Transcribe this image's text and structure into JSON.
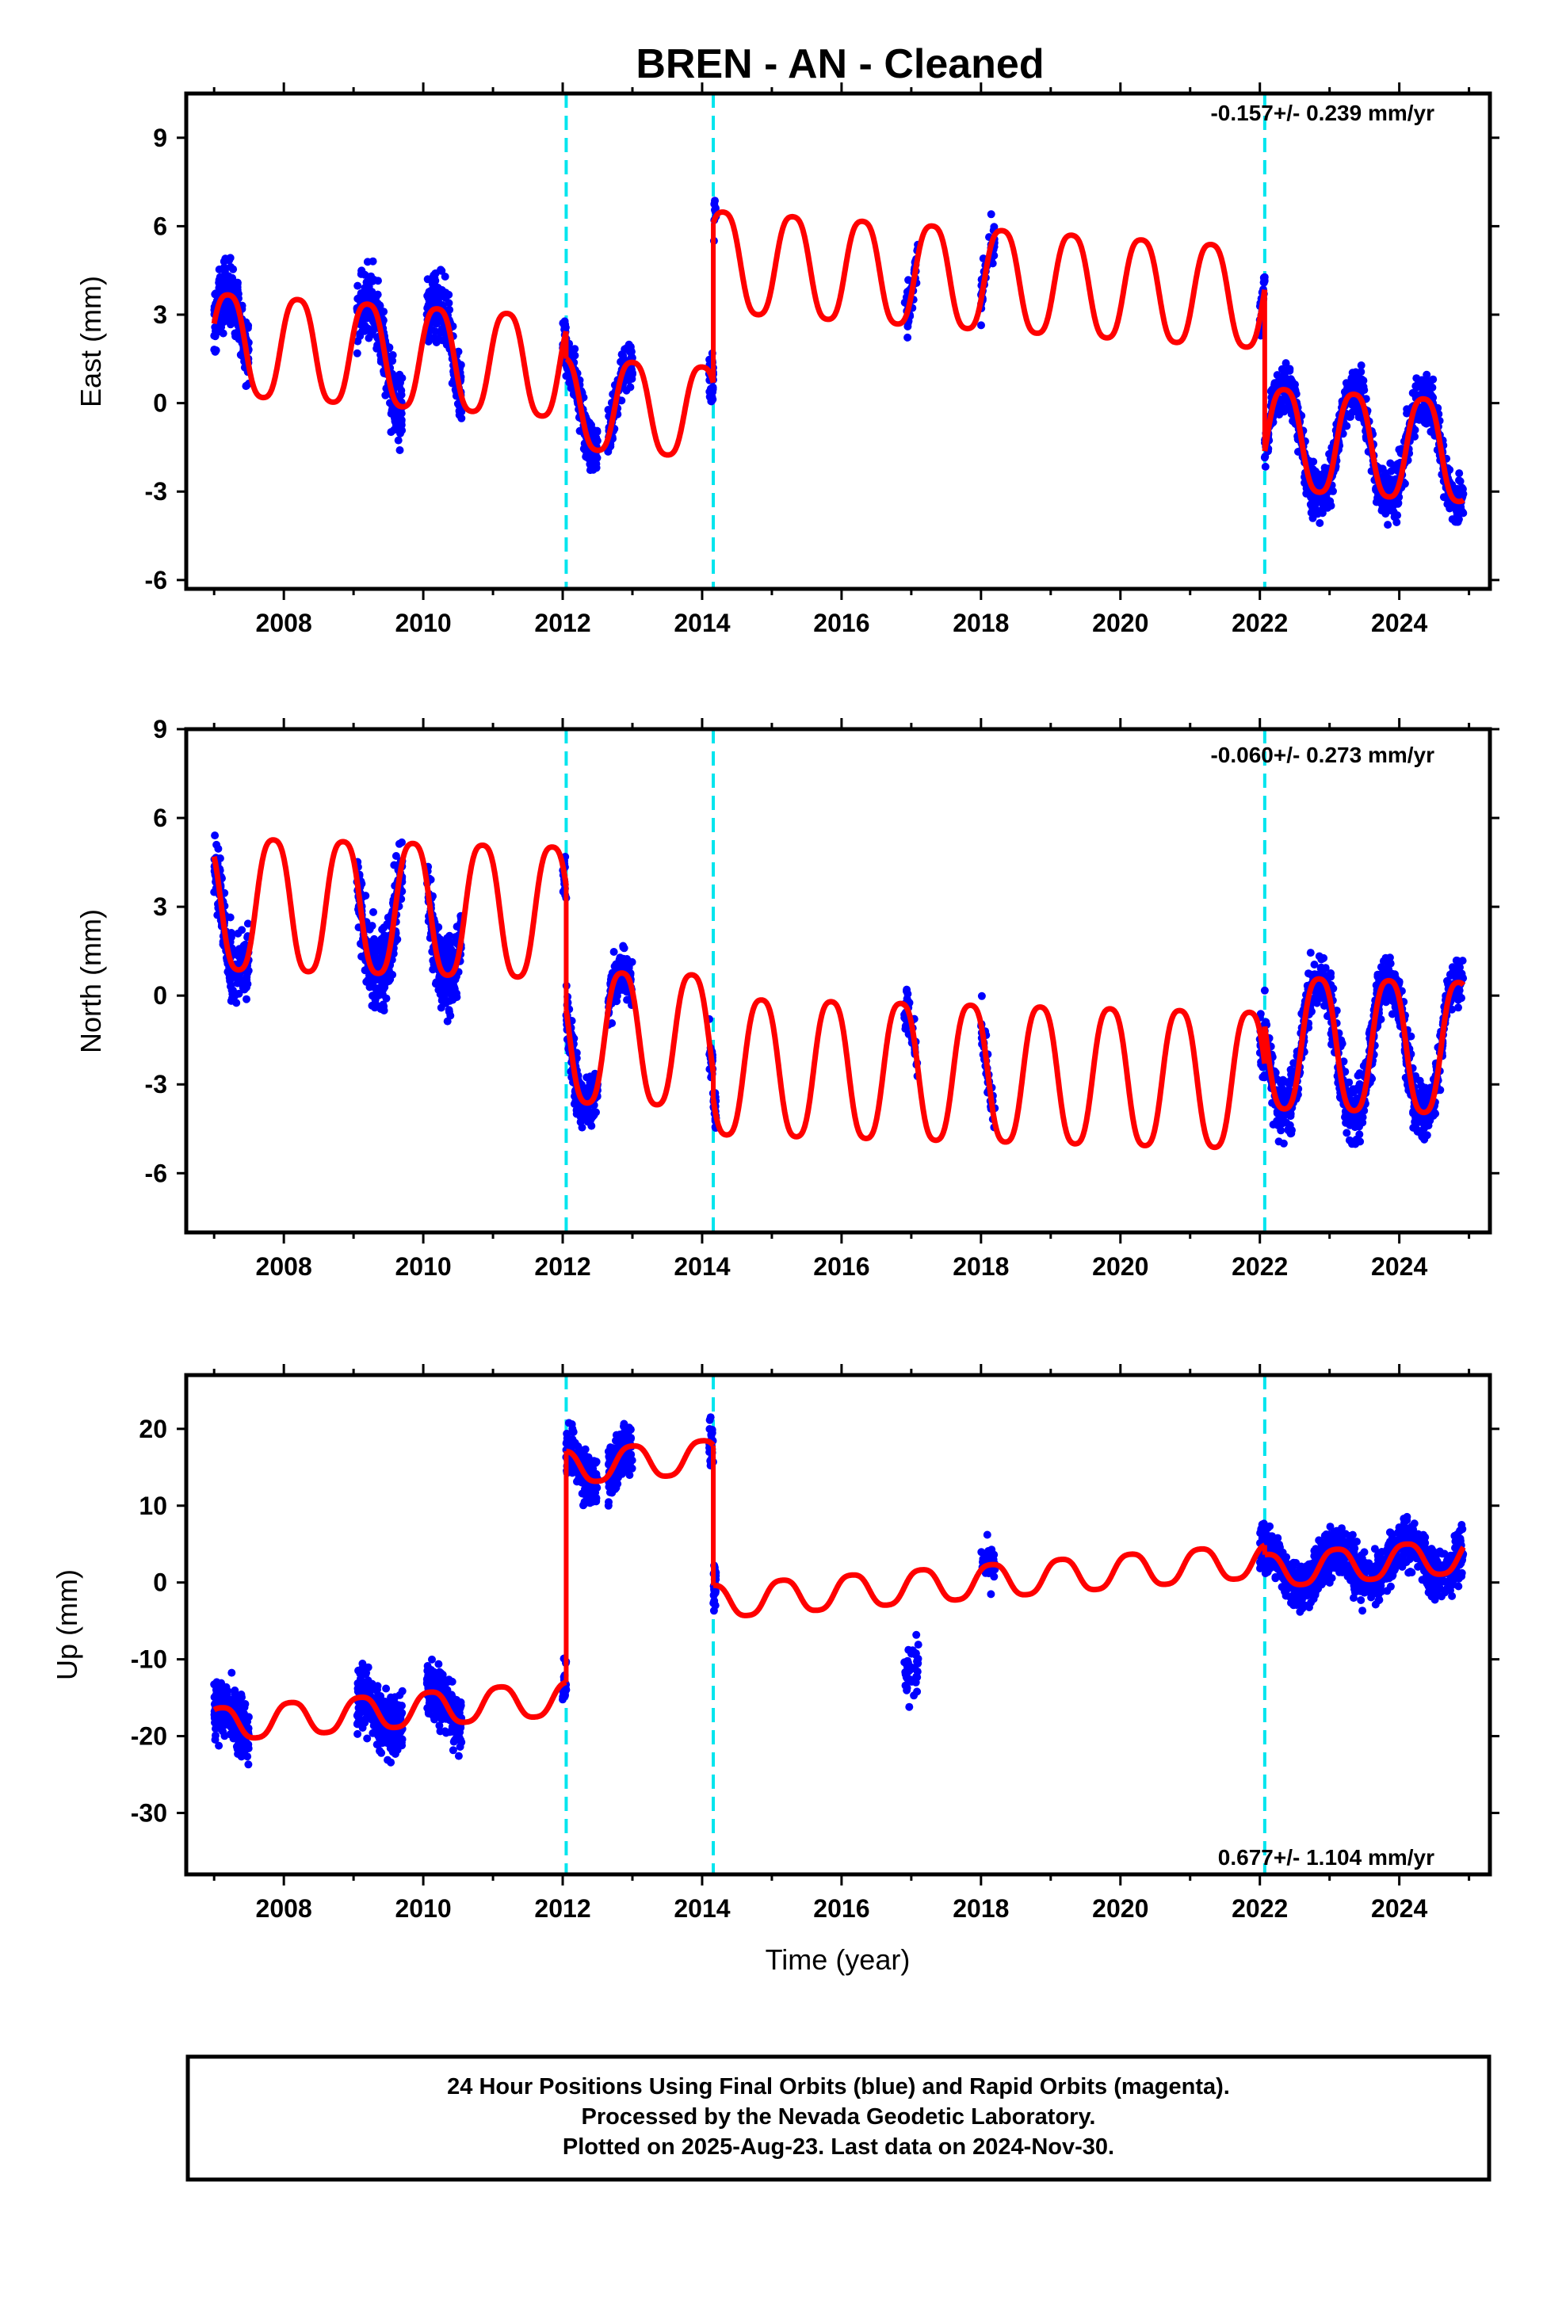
{
  "title": "BREN  - AN - Cleaned",
  "xlabel": "Time (year)",
  "x_ticks": [
    "2008",
    "2010",
    "2012",
    "2014",
    "2016",
    "2018",
    "2020",
    "2022",
    "2024"
  ],
  "footer": {
    "line1": "24 Hour Positions Using Final Orbits (blue) and Rapid Orbits (magenta).",
    "line2": "Processed by the Nevada Geodetic Laboratory.",
    "line3": "Plotted on 2025-Aug-23. Last data on 2024-Nov-30."
  },
  "colors": {
    "data": "#0000ff",
    "model": "#ff0000",
    "steps": "#00e5ee",
    "frame": "#000000"
  },
  "chart_data": [
    {
      "type": "scatter",
      "title": "BREN  - AN - Cleaned",
      "ylabel": "East (mm)",
      "xlabel": "",
      "xlim": [
        2006.6,
        2025.3
      ],
      "ylim": [
        -6.3,
        10.5
      ],
      "y_ticks": [
        "9",
        "6",
        "3",
        "0",
        "-3",
        "-6"
      ],
      "y_tick_values": [
        9,
        6,
        3,
        0,
        -3,
        -6
      ],
      "rate_label": "-0.157+/- 0.239 mm/yr",
      "rate_position": "top-right",
      "step_epochs": [
        2012.05,
        2014.16,
        2022.07
      ],
      "model": {
        "name": "model",
        "segments": [
          {
            "start": 2007.0,
            "end": 2012.05,
            "offset": 2.0,
            "trend": -0.157,
            "amp": 2.0,
            "phase": 2007.2
          },
          {
            "start": 2012.05,
            "end": 2014.16,
            "offset": 0.0,
            "trend": -0.157,
            "amp": 1.8,
            "phase": 2012.0
          },
          {
            "start": 2014.16,
            "end": 2022.07,
            "offset": 4.8,
            "trend": -0.157,
            "amp": 2.0,
            "phase": 2014.3
          },
          {
            "start": 2022.07,
            "end": 2024.92,
            "offset": -1.2,
            "trend": -0.157,
            "amp": 2.0,
            "phase": 2022.35
          }
        ]
      },
      "data_clusters": [
        {
          "start": 2007.0,
          "end": 2007.5,
          "scatter": 1.3,
          "count": 240
        },
        {
          "start": 2009.05,
          "end": 2009.7,
          "scatter": 1.4,
          "count": 280
        },
        {
          "start": 2010.05,
          "end": 2010.55,
          "scatter": 1.3,
          "count": 240
        },
        {
          "start": 2012.0,
          "end": 2012.5,
          "scatter": 1.0,
          "count": 200
        },
        {
          "start": 2012.65,
          "end": 2013.0,
          "scatter": 1.0,
          "count": 140
        },
        {
          "start": 2014.1,
          "end": 2014.2,
          "scatter": 1.0,
          "count": 50
        },
        {
          "start": 2016.9,
          "end": 2017.1,
          "scatter": 0.8,
          "count": 40
        },
        {
          "start": 2018.0,
          "end": 2018.2,
          "scatter": 0.9,
          "count": 40
        },
        {
          "start": 2022.0,
          "end": 2024.92,
          "scatter": 1.0,
          "count": 1000
        }
      ]
    },
    {
      "type": "scatter",
      "title": "",
      "ylabel": "North (mm)",
      "xlabel": "",
      "xlim": [
        2006.6,
        2025.3
      ],
      "ylim": [
        -8.0,
        9.0
      ],
      "y_ticks": [
        "9",
        "6",
        "3",
        "0",
        "-3",
        "-6"
      ],
      "y_tick_values": [
        9,
        6,
        3,
        0,
        -3,
        -6
      ],
      "rate_label": "-0.060+/- 0.273 mm/yr",
      "rate_position": "top-right",
      "step_epochs": [
        2012.05,
        2014.16,
        2022.07
      ],
      "model": {
        "name": "model",
        "segments": [
          {
            "start": 2007.0,
            "end": 2012.05,
            "offset": 3.1,
            "trend": -0.06,
            "amp": 2.6,
            "phase": 2006.85
          },
          {
            "start": 2012.05,
            "end": 2014.16,
            "offset": -1.4,
            "trend": -0.06,
            "amp": 2.6,
            "phase": 2011.85
          },
          {
            "start": 2014.16,
            "end": 2022.07,
            "offset": -2.4,
            "trend": -0.06,
            "amp": 2.7,
            "phase": 2013.85
          },
          {
            "start": 2022.07,
            "end": 2024.92,
            "offset": -1.6,
            "trend": -0.06,
            "amp": 2.6,
            "phase": 2021.85
          }
        ]
      },
      "data_clusters": [
        {
          "start": 2007.0,
          "end": 2007.5,
          "scatter": 1.4,
          "count": 240
        },
        {
          "start": 2009.05,
          "end": 2009.7,
          "scatter": 1.6,
          "count": 280
        },
        {
          "start": 2010.05,
          "end": 2010.55,
          "scatter": 1.4,
          "count": 240
        },
        {
          "start": 2012.0,
          "end": 2012.5,
          "scatter": 1.1,
          "count": 200
        },
        {
          "start": 2012.65,
          "end": 2013.0,
          "scatter": 1.0,
          "count": 140
        },
        {
          "start": 2014.1,
          "end": 2014.2,
          "scatter": 0.9,
          "count": 50
        },
        {
          "start": 2016.9,
          "end": 2017.1,
          "scatter": 0.8,
          "count": 40
        },
        {
          "start": 2018.0,
          "end": 2018.2,
          "scatter": 0.9,
          "count": 40
        },
        {
          "start": 2022.0,
          "end": 2024.92,
          "scatter": 1.2,
          "count": 1000
        }
      ]
    },
    {
      "type": "scatter",
      "title": "",
      "ylabel": "Up (mm)",
      "xlabel": "Time (year)",
      "xlim": [
        2006.6,
        2025.3
      ],
      "ylim": [
        -38.0,
        27.0
      ],
      "y_ticks": [
        "20",
        "10",
        "0",
        "-10",
        "-20",
        "-30"
      ],
      "y_tick_values": [
        20,
        10,
        0,
        -10,
        -20,
        -30
      ],
      "rate_label": "0.677+/- 1.104 mm/yr",
      "rate_position": "bottom-right",
      "step_epochs": [
        2012.05,
        2014.16,
        2022.07
      ],
      "model": {
        "name": "model",
        "segments": [
          {
            "start": 2007.0,
            "end": 2012.05,
            "offset": -18.5,
            "trend": 0.677,
            "amp": 2.5,
            "phase": 2007.1
          },
          {
            "start": 2012.05,
            "end": 2014.16,
            "offset": 15.0,
            "trend": 0.677,
            "amp": 2.5,
            "phase": 2012.0
          },
          {
            "start": 2014.16,
            "end": 2022.07,
            "offset": -2.5,
            "trend": 0.677,
            "amp": 2.5,
            "phase": 2014.15
          },
          {
            "start": 2022.07,
            "end": 2024.92,
            "offset": 1.5,
            "trend": 0.677,
            "amp": 2.5,
            "phase": 2022.1
          }
        ]
      },
      "data_clusters": [
        {
          "start": 2007.0,
          "end": 2007.5,
          "scatter": 4.5,
          "count": 240
        },
        {
          "start": 2009.05,
          "end": 2009.7,
          "scatter": 5.0,
          "count": 280
        },
        {
          "start": 2010.05,
          "end": 2010.55,
          "scatter": 4.5,
          "count": 240
        },
        {
          "start": 2012.0,
          "end": 2012.5,
          "scatter": 4.0,
          "count": 200
        },
        {
          "start": 2012.65,
          "end": 2013.0,
          "scatter": 4.0,
          "count": 140
        },
        {
          "start": 2014.1,
          "end": 2014.2,
          "scatter": 4.0,
          "count": 50
        },
        {
          "start": 2016.9,
          "end": 2017.1,
          "scatter": 4.0,
          "count": 40,
          "shift": -12.0
        },
        {
          "start": 2018.0,
          "end": 2018.2,
          "scatter": 3.5,
          "count": 40
        },
        {
          "start": 2022.0,
          "end": 2024.92,
          "scatter": 4.0,
          "count": 1000
        }
      ]
    }
  ]
}
